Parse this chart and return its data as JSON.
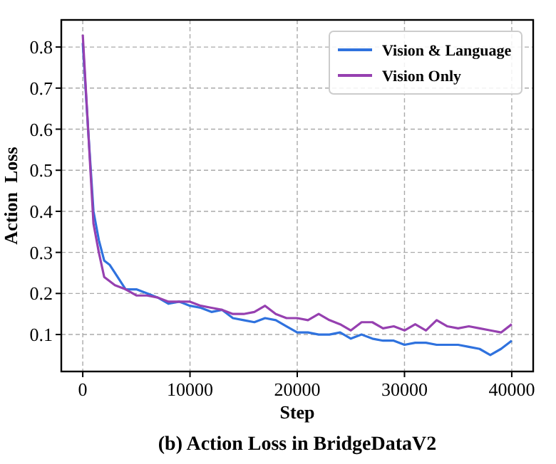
{
  "chart_data": {
    "type": "line",
    "title": "(b) Action Loss in BridgeDataV2",
    "xlabel": "Step",
    "ylabel": "Action  Loss",
    "x": [
      0,
      500,
      1000,
      1500,
      2000,
      2500,
      3000,
      4000,
      5000,
      6000,
      7000,
      8000,
      9000,
      10000,
      11000,
      12000,
      13000,
      14000,
      15000,
      16000,
      17000,
      18000,
      19000,
      20000,
      21000,
      22000,
      23000,
      24000,
      25000,
      26000,
      27000,
      28000,
      29000,
      30000,
      31000,
      32000,
      33000,
      34000,
      35000,
      36000,
      37000,
      38000,
      39000,
      40000
    ],
    "series": [
      {
        "name": "Vision & Language",
        "color": "#2f72de",
        "values": [
          0.81,
          0.6,
          0.4,
          0.33,
          0.28,
          0.27,
          0.25,
          0.21,
          0.21,
          0.2,
          0.19,
          0.175,
          0.18,
          0.17,
          0.165,
          0.155,
          0.16,
          0.14,
          0.135,
          0.13,
          0.14,
          0.135,
          0.12,
          0.105,
          0.105,
          0.1,
          0.1,
          0.105,
          0.09,
          0.1,
          0.09,
          0.085,
          0.085,
          0.075,
          0.08,
          0.08,
          0.075,
          0.075,
          0.075,
          0.07,
          0.065,
          0.05,
          0.065,
          0.085
        ]
      },
      {
        "name": "Vision Only",
        "color": "#9640b0",
        "values": [
          0.83,
          0.6,
          0.37,
          0.3,
          0.24,
          0.23,
          0.22,
          0.21,
          0.195,
          0.195,
          0.19,
          0.18,
          0.18,
          0.18,
          0.17,
          0.165,
          0.16,
          0.15,
          0.15,
          0.155,
          0.17,
          0.15,
          0.14,
          0.14,
          0.135,
          0.15,
          0.135,
          0.125,
          0.11,
          0.13,
          0.13,
          0.115,
          0.12,
          0.11,
          0.125,
          0.11,
          0.135,
          0.12,
          0.115,
          0.12,
          0.115,
          0.11,
          0.105,
          0.125
        ]
      }
    ],
    "xlim": [
      -2000,
      42000
    ],
    "xticks": [
      0,
      10000,
      20000,
      30000,
      40000
    ],
    "ylim": [
      0.01,
      0.866
    ],
    "yticks": [
      0.1,
      0.2,
      0.3,
      0.4,
      0.5,
      0.6,
      0.7,
      0.8
    ],
    "grid": true,
    "legend": "top right",
    "line_style": "solid",
    "marker": "none"
  }
}
